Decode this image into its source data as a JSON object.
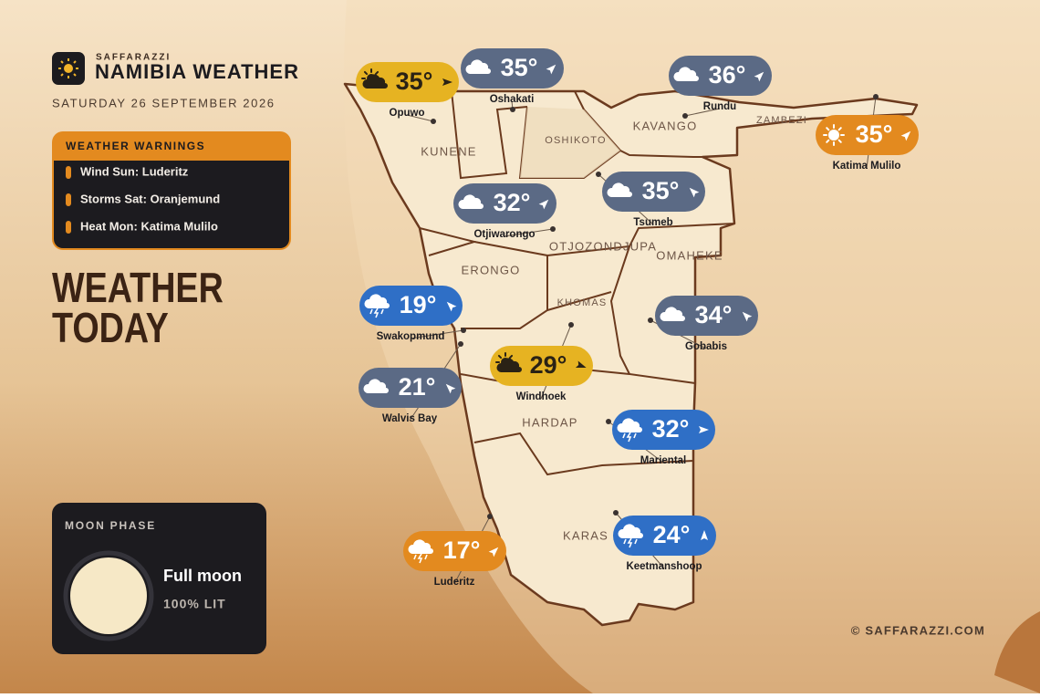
{
  "brand": "SAFFARAZZI",
  "title": "NAMIBIA WEATHER",
  "date": "SATURDAY 26 SEPTEMBER 2026",
  "warnings": {
    "title": "WEATHER WARNINGS",
    "items": [
      "Wind Sun: Luderitz",
      "Storms Sat: Oranjemund",
      "Heat Mon: Katima Mulilo"
    ]
  },
  "headline": [
    "WEATHER",
    "TODAY"
  ],
  "moon": {
    "title": "MOON PHASE",
    "phase": "Full moon",
    "lit": "100% LIT"
  },
  "copyright": "© SAFFARAZZI.COM",
  "regions": [
    "KUNENE",
    "OSHIKOTO",
    "KAVANGO",
    "ZAMBEZI",
    "OTJOZONDJUPA",
    "ERONGO",
    "OMAHEKE",
    "KHOMAS",
    "HARDAP",
    "KARAS"
  ],
  "cities": [
    {
      "name": "Opuwo",
      "temp": "35°",
      "condition": "partly-sunny",
      "color": "#e6b322",
      "wind": 90
    },
    {
      "name": "Oshakati",
      "temp": "35°",
      "condition": "cloudy",
      "color": "#5b6a85",
      "wind": 45
    },
    {
      "name": "Rundu",
      "temp": "36°",
      "condition": "cloudy",
      "color": "#5b6a85",
      "wind": 45
    },
    {
      "name": "Katima Mulilo",
      "temp": "35°",
      "condition": "sunny",
      "color": "#e38a1f",
      "wind": 45
    },
    {
      "name": "Otjiwarongo",
      "temp": "32°",
      "condition": "cloudy",
      "color": "#5b6a85",
      "wind": 45
    },
    {
      "name": "Tsumeb",
      "temp": "35°",
      "condition": "cloudy",
      "color": "#5b6a85",
      "wind": -45
    },
    {
      "name": "Swakopmund",
      "temp": "19°",
      "condition": "storm",
      "color": "#2f6fc6",
      "wind": -45
    },
    {
      "name": "Gobabis",
      "temp": "34°",
      "condition": "cloudy",
      "color": "#5b6a85",
      "wind": -45
    },
    {
      "name": "Windhoek",
      "temp": "29°",
      "condition": "partly-sunny",
      "color": "#e6b322",
      "wind": 110
    },
    {
      "name": "Walvis Bay",
      "temp": "21°",
      "condition": "cloudy",
      "color": "#5b6a85",
      "wind": -45
    },
    {
      "name": "Mariental",
      "temp": "32°",
      "condition": "storm",
      "color": "#2f6fc6",
      "wind": 90
    },
    {
      "name": "Luderitz",
      "temp": "17°",
      "condition": "storm",
      "color": "#e38a1f",
      "wind": 45
    },
    {
      "name": "Keetmanshoop",
      "temp": "24°",
      "condition": "storm",
      "color": "#2f6fc6",
      "wind": 0
    }
  ]
}
